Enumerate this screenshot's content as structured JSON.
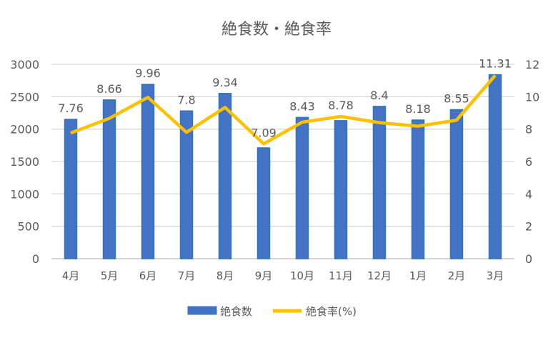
{
  "chart_data": {
    "type": "bar+line",
    "title": "絶食数・絶食率",
    "categories": [
      "4月",
      "5月",
      "6月",
      "7月",
      "8月",
      "9月",
      "10月",
      "11月",
      "12月",
      "1月",
      "2月",
      "3月"
    ],
    "series": [
      {
        "name": "絶食数",
        "type": "bar",
        "axis": "left",
        "color": "#4472C4",
        "values": [
          2150,
          2450,
          2690,
          2280,
          2550,
          1710,
          2180,
          2130,
          2350,
          2140,
          2300,
          2840
        ]
      },
      {
        "name": "絶食率(%)",
        "type": "line",
        "axis": "right",
        "color": "#FFC000",
        "values": [
          7.76,
          8.66,
          9.96,
          7.8,
          9.34,
          7.09,
          8.43,
          8.78,
          8.4,
          8.18,
          8.55,
          11.31
        ],
        "labels": [
          "7.76",
          "8.66",
          "9.96",
          "7.8",
          "9.34",
          "7.09",
          "8.43",
          "8.78",
          "8.4",
          "8.18",
          "8.55",
          "11.31"
        ]
      }
    ],
    "y_left": {
      "min": 0,
      "max": 3000,
      "ticks": [
        "0",
        "500",
        "1000",
        "1500",
        "2000",
        "2500",
        "3000"
      ]
    },
    "y_right": {
      "min": 0,
      "max": 12,
      "ticks": [
        "0",
        "2",
        "4",
        "6",
        "8",
        "10",
        "12"
      ]
    },
    "grid": true,
    "legend": "bottom"
  }
}
